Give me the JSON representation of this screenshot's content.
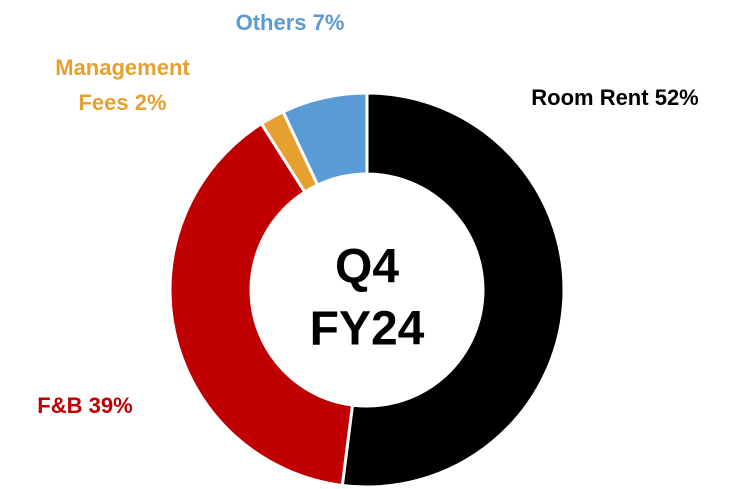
{
  "chart_data": {
    "type": "donut",
    "categories": [
      "Room Rent",
      "F&B",
      "Management Fees",
      "Others"
    ],
    "values": [
      52,
      39,
      2,
      7
    ],
    "value_labels": [
      "52%",
      "39%",
      "2%",
      "7%"
    ],
    "colors": [
      "#000000",
      "#c00000",
      "#e6a030",
      "#5b9bd5"
    ],
    "center_label": [
      "Q4",
      "FY24"
    ]
  }
}
